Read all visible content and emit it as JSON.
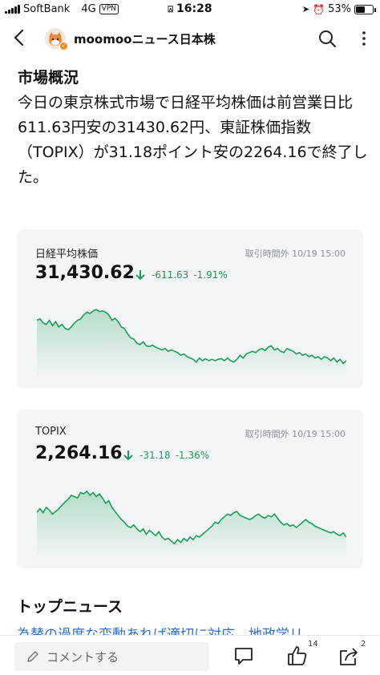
{
  "status_bar": {
    "carrier": "SoftBank",
    "network": "4G",
    "vpn": "VPN",
    "time": "16:28",
    "battery": "53%",
    "battery_level": 0.53
  },
  "header": {
    "channel_name": "moomooニュース日本株"
  },
  "article": {
    "section_title": "市場概況",
    "paragraph": "今日の東京株式市場で日経平均株価は前営業日比611.63円安の31430.62円、東証株価指数（TOPIX）が31.18ポイント安の2264.16で終了した。"
  },
  "cards": [
    {
      "name": "日経平均株価",
      "time": "取引時間外 10/19 15:00",
      "price": "31,430.62",
      "change": "-611.63",
      "change_pct": "-1.91%",
      "accent": "#1a9e55",
      "sparkline": [
        0.72,
        0.74,
        0.68,
        0.66,
        0.72,
        0.64,
        0.7,
        0.62,
        0.66,
        0.6,
        0.58,
        0.62,
        0.68,
        0.72,
        0.74,
        0.8,
        0.84,
        0.82,
        0.86,
        0.88,
        0.85,
        0.86,
        0.84,
        0.8,
        0.72,
        0.75,
        0.7,
        0.62,
        0.6,
        0.52,
        0.46,
        0.44,
        0.38,
        0.36,
        0.4,
        0.34,
        0.33,
        0.35,
        0.32,
        0.3,
        0.28,
        0.3,
        0.26,
        0.28,
        0.26,
        0.24,
        0.2,
        0.22,
        0.18,
        0.16,
        0.14,
        0.1,
        0.16,
        0.12,
        0.15,
        0.12,
        0.14,
        0.12,
        0.14,
        0.15,
        0.12,
        0.16,
        0.12,
        0.1,
        0.14,
        0.2,
        0.16,
        0.22,
        0.24,
        0.26,
        0.24,
        0.28,
        0.3,
        0.27,
        0.32,
        0.34,
        0.28,
        0.3,
        0.26,
        0.24,
        0.3,
        0.28,
        0.26,
        0.22,
        0.24,
        0.2,
        0.22,
        0.18,
        0.2,
        0.16,
        0.18,
        0.14,
        0.18,
        0.16,
        0.12,
        0.16,
        0.1,
        0.14,
        0.08,
        0.12
      ]
    },
    {
      "name": "TOPIX",
      "time": "取引時間外 10/19 15:00",
      "price": "2,264.16",
      "change": "-31.18",
      "change_pct": "-1.36%",
      "accent": "#1a9e55",
      "sparkline": [
        0.55,
        0.6,
        0.54,
        0.62,
        0.58,
        0.52,
        0.56,
        0.6,
        0.65,
        0.7,
        0.74,
        0.8,
        0.78,
        0.76,
        0.84,
        0.82,
        0.86,
        0.8,
        0.84,
        0.78,
        0.82,
        0.76,
        0.68,
        0.72,
        0.62,
        0.56,
        0.5,
        0.44,
        0.4,
        0.34,
        0.32,
        0.36,
        0.3,
        0.26,
        0.3,
        0.22,
        0.28,
        0.24,
        0.2,
        0.26,
        0.18,
        0.14,
        0.16,
        0.12,
        0.08,
        0.14,
        0.1,
        0.16,
        0.12,
        0.18,
        0.14,
        0.2,
        0.18,
        0.22,
        0.26,
        0.3,
        0.34,
        0.4,
        0.38,
        0.44,
        0.48,
        0.52,
        0.5,
        0.54,
        0.56,
        0.5,
        0.48,
        0.46,
        0.44,
        0.46,
        0.5,
        0.52,
        0.48,
        0.46,
        0.5,
        0.48,
        0.52,
        0.46,
        0.4,
        0.36,
        0.38,
        0.34,
        0.36,
        0.32,
        0.36,
        0.4,
        0.44,
        0.4,
        0.38,
        0.34,
        0.32,
        0.3,
        0.28,
        0.26,
        0.24,
        0.26,
        0.22,
        0.2,
        0.24,
        0.18
      ]
    }
  ],
  "top_news": {
    "title": "トップニュース",
    "link_text": "為替の過度な変動あれば適切に対応、地政学リ"
  },
  "bottom_bar": {
    "comment_placeholder": "コメントする",
    "like_count": "14",
    "share_count": "2"
  }
}
